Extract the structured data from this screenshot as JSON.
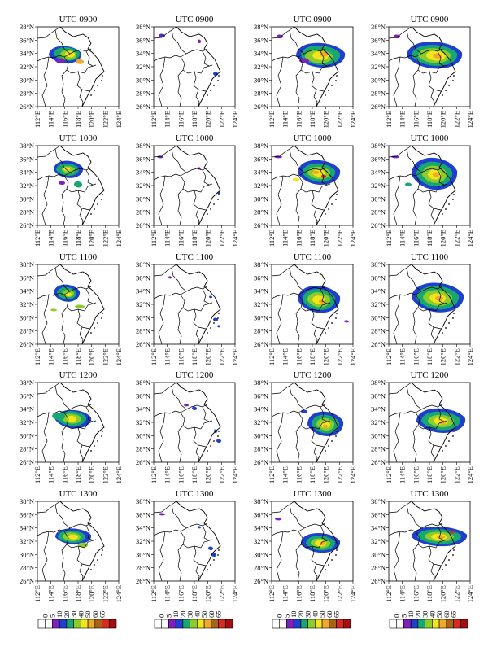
{
  "times": [
    "UTC 0900",
    "UTC 1000",
    "UTC 1100",
    "UTC 1200",
    "UTC 1300"
  ],
  "lat_labels": [
    "38°N",
    "36°N",
    "34°N",
    "32°N",
    "30°N",
    "28°N",
    "26°N"
  ],
  "lon_labels": [
    "112°E",
    "114°E",
    "116°E",
    "118°E",
    "120°E",
    "122°E",
    "124°E"
  ],
  "colorbar": {
    "ticks": [
      "0",
      "5",
      "10",
      "20",
      "30",
      "40",
      "50",
      "60",
      "65"
    ],
    "colors": [
      "#ffffff",
      "#ffffff",
      "#7f1fbf",
      "#1f3fcf",
      "#16a870",
      "#8dcc2a",
      "#f2e51c",
      "#f0a92a",
      "#a86418",
      "#d92a1c",
      "#a30e0e"
    ]
  },
  "map_extent": {
    "lon": [
      112,
      124
    ],
    "lat": [
      26,
      38
    ]
  },
  "colors": {
    "coastline": "#000000",
    "frame": "#000000"
  }
}
